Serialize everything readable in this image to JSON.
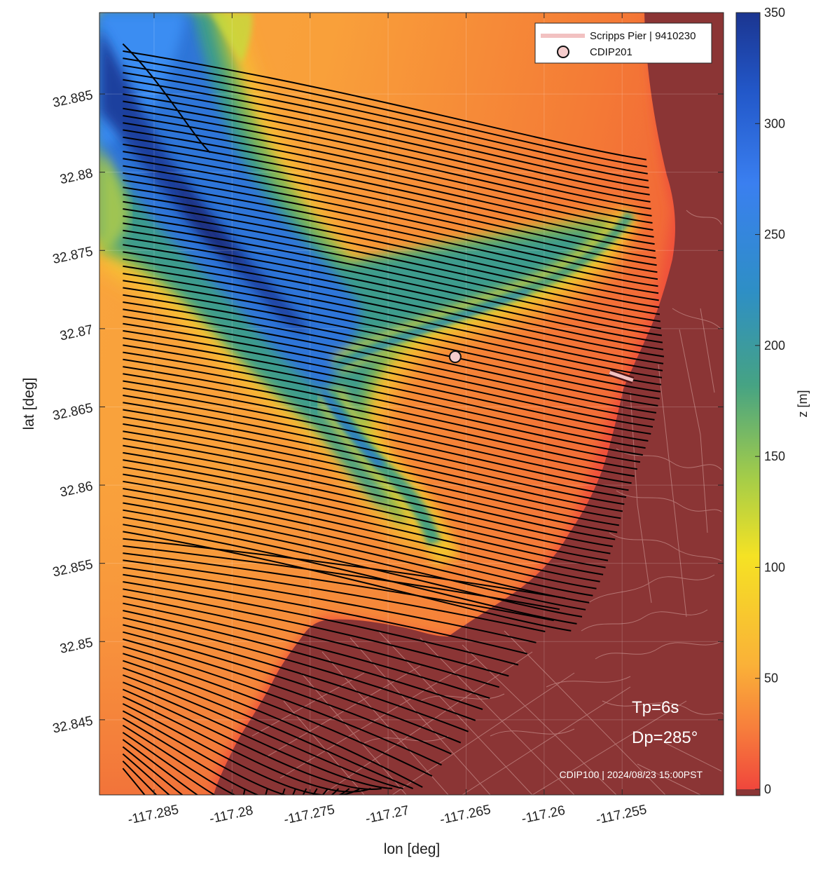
{
  "chart_data": {
    "type": "heatmap",
    "xlabel": "lon [deg]",
    "ylabel": "lat [deg]",
    "xlim": [
      -117.2885,
      -117.2485
    ],
    "ylim": [
      32.8402,
      32.8902
    ],
    "xticks": [
      -117.285,
      -117.28,
      -117.275,
      -117.27,
      -117.265,
      -117.26,
      -117.255
    ],
    "xtick_labels": [
      "-117.285",
      "-117.28",
      "-117.275",
      "-117.27",
      "-117.265",
      "-117.26",
      "-117.255"
    ],
    "yticks": [
      32.845,
      32.85,
      32.855,
      32.86,
      32.865,
      32.87,
      32.875,
      32.88,
      32.885
    ],
    "ytick_labels": [
      "32.845",
      "32.85",
      "32.855",
      "32.86",
      "32.865",
      "32.87",
      "32.875",
      "32.88",
      "32.885"
    ],
    "colorbar": {
      "label": "z [m]",
      "clim": [
        0,
        350
      ],
      "ticks": [
        0,
        50,
        100,
        150,
        200,
        250,
        300,
        350
      ],
      "tick_labels": [
        "0",
        "50",
        "100",
        "150",
        "200",
        "250",
        "300",
        "350"
      ],
      "land_color": "#8b3535"
    },
    "grid": true,
    "legend": {
      "position": "top-right",
      "entries": [
        {
          "label": "Scripps Pier | 9410230",
          "marker": "line",
          "color": "#f2c1c1"
        },
        {
          "label": "CDIP201",
          "marker": "circle",
          "color": "#f5cccc"
        }
      ]
    },
    "points": {
      "cdip201": {
        "lon": -117.2657,
        "lat": 32.8682
      },
      "scripps_pier": {
        "lon0": -117.2558,
        "lat0": 32.8672,
        "lon1": -117.2543,
        "lat1": 32.8667
      }
    },
    "annotations": {
      "tp": "Tp=6s",
      "dp": "Dp=285°",
      "source": "CDIP100 | 2024/08/23 15:00PST"
    },
    "rays": {
      "count": 102,
      "color": "#000000",
      "start_lon": -117.287,
      "lat_top": 32.8882,
      "lat_bottom": 32.8419
    }
  }
}
